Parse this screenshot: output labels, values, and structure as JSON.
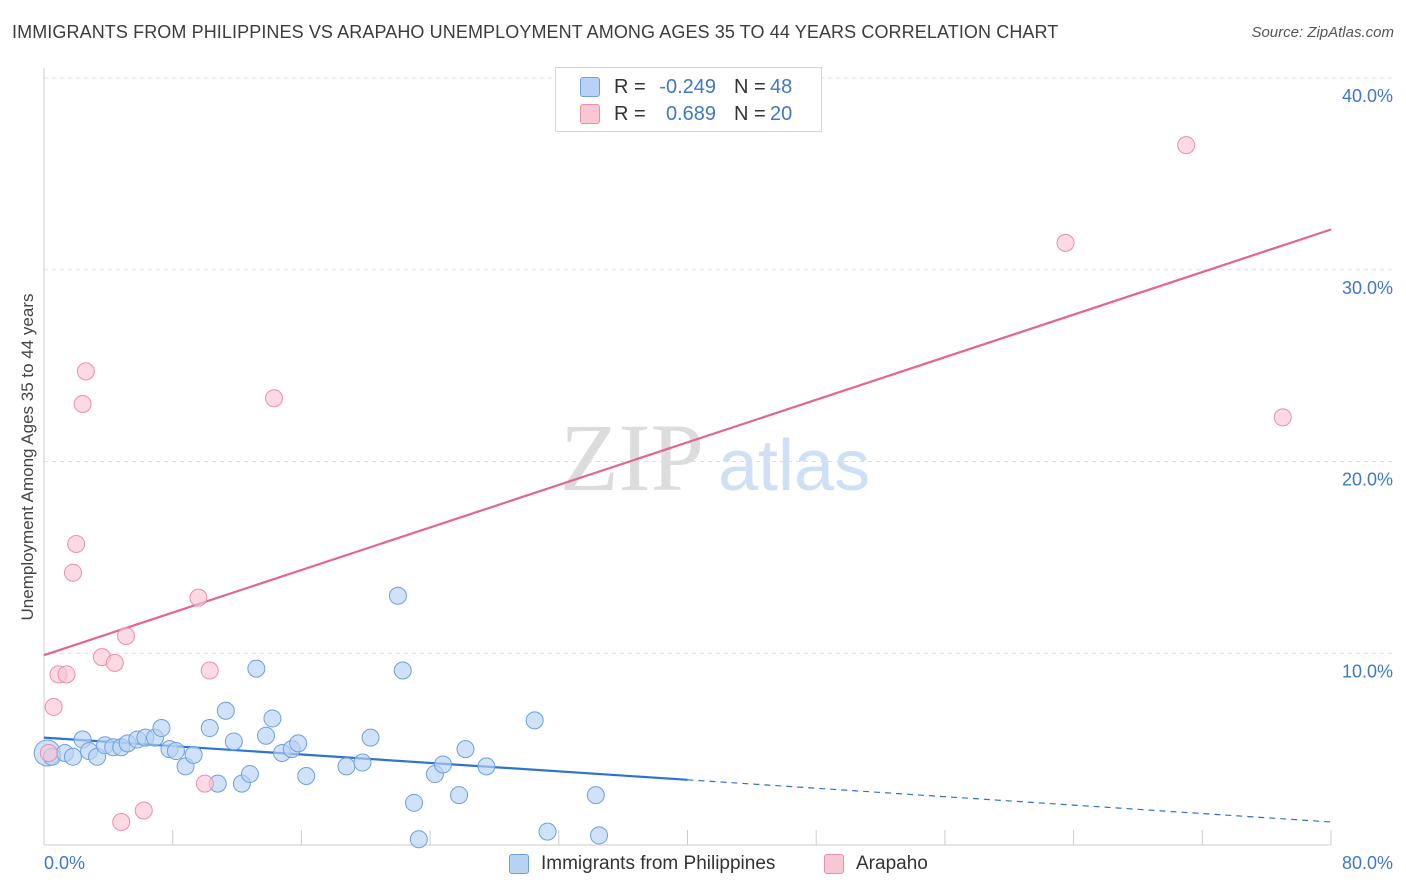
{
  "header": {
    "title": "IMMIGRANTS FROM PHILIPPINES VS ARAPAHO UNEMPLOYMENT AMONG AGES 35 TO 44 YEARS CORRELATION CHART",
    "source": "Source: ZipAtlas.com"
  },
  "watermark": {
    "zip": "ZIP",
    "atlas": "atlas"
  },
  "legend": {
    "rows": [
      {
        "r_label": "R =",
        "r_value": "-0.249",
        "n_label": "N =",
        "n_value": "48"
      },
      {
        "r_label": "R =",
        "r_value": "0.689",
        "n_label": "N =",
        "n_value": "20"
      }
    ]
  },
  "bottom_legend": {
    "series1": "Immigrants from Philippines",
    "series2": "Arapaho"
  },
  "colors": {
    "blue_fill": "#b7d2f5",
    "blue_stroke": "#6e9fe0",
    "blue_line": "#2f72cf",
    "pink_fill": "#f9c6d4",
    "pink_stroke": "#ea8fab",
    "pink_line": "#e3668f",
    "axis_text": "#3f78c6",
    "grid": "#dddddd"
  },
  "chart_data": {
    "type": "scatter",
    "title": "IMMIGRANTS FROM PHILIPPINES VS ARAPAHO UNEMPLOYMENT AMONG AGES 35 TO 44 YEARS CORRELATION CHART",
    "xlabel": "",
    "ylabel": "Unemployment Among Ages 35 to 44 years",
    "xlim": [
      0,
      80
    ],
    "ylim": [
      0,
      40
    ],
    "x_tick_labels": [
      "0.0%",
      "80.0%"
    ],
    "y_ticks": [
      10,
      20,
      30,
      40
    ],
    "y_tick_labels": [
      "10.0%",
      "20.0%",
      "30.0%",
      "40.0%"
    ],
    "series": [
      {
        "name": "Immigrants from Philippines",
        "r": -0.249,
        "n": 48,
        "points": [
          [
            0.2,
            4.8
          ],
          [
            0.5,
            4.6
          ],
          [
            1.3,
            4.8
          ],
          [
            1.8,
            4.6
          ],
          [
            2.4,
            5.5
          ],
          [
            2.8,
            4.9
          ],
          [
            3.3,
            4.6
          ],
          [
            3.8,
            5.2
          ],
          [
            4.3,
            5.1
          ],
          [
            4.8,
            5.1
          ],
          [
            5.2,
            5.3
          ],
          [
            5.8,
            5.5
          ],
          [
            6.3,
            5.6
          ],
          [
            6.9,
            5.6
          ],
          [
            7.3,
            6.1
          ],
          [
            7.8,
            5.0
          ],
          [
            8.2,
            4.9
          ],
          [
            8.8,
            4.1
          ],
          [
            9.3,
            4.7
          ],
          [
            10.3,
            6.1
          ],
          [
            10.8,
            3.2
          ],
          [
            11.3,
            7.0
          ],
          [
            11.8,
            5.4
          ],
          [
            12.3,
            3.2
          ],
          [
            12.8,
            3.7
          ],
          [
            13.2,
            9.2
          ],
          [
            13.8,
            5.7
          ],
          [
            14.2,
            6.6
          ],
          [
            14.8,
            4.8
          ],
          [
            15.4,
            5.0
          ],
          [
            15.8,
            5.3
          ],
          [
            16.3,
            3.6
          ],
          [
            18.8,
            4.1
          ],
          [
            19.8,
            4.3
          ],
          [
            20.3,
            5.6
          ],
          [
            22.0,
            13.0
          ],
          [
            22.3,
            9.1
          ],
          [
            23.0,
            2.2
          ],
          [
            23.3,
            0.3
          ],
          [
            24.3,
            3.7
          ],
          [
            24.8,
            4.2
          ],
          [
            25.8,
            2.6
          ],
          [
            26.2,
            5.0
          ],
          [
            27.5,
            4.1
          ],
          [
            30.5,
            6.5
          ],
          [
            31.3,
            0.7
          ],
          [
            34.3,
            2.6
          ],
          [
            34.5,
            0.5
          ]
        ],
        "trend": {
          "x": [
            0,
            40
          ],
          "y": [
            5.6,
            3.4
          ],
          "dashed_extension": {
            "x": [
              40,
              80
            ],
            "y": [
              3.4,
              1.2
            ]
          }
        }
      },
      {
        "name": "Arapaho",
        "r": 0.689,
        "n": 20,
        "points": [
          [
            0.3,
            4.8
          ],
          [
            0.6,
            7.2
          ],
          [
            0.9,
            8.9
          ],
          [
            1.4,
            8.9
          ],
          [
            1.8,
            14.2
          ],
          [
            2.0,
            15.7
          ],
          [
            2.4,
            23.0
          ],
          [
            2.6,
            24.7
          ],
          [
            3.6,
            9.8
          ],
          [
            4.4,
            9.5
          ],
          [
            4.8,
            1.2
          ],
          [
            5.1,
            10.9
          ],
          [
            6.2,
            1.8
          ],
          [
            9.6,
            12.9
          ],
          [
            10.0,
            3.2
          ],
          [
            10.3,
            9.1
          ],
          [
            14.3,
            23.3
          ],
          [
            63.5,
            31.4
          ],
          [
            71.0,
            36.5
          ],
          [
            77.0,
            22.3
          ]
        ],
        "trend": {
          "x": [
            0,
            80
          ],
          "y": [
            9.9,
            32.1
          ]
        }
      }
    ]
  }
}
